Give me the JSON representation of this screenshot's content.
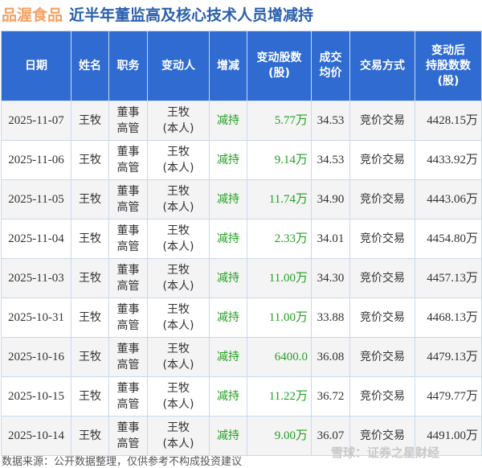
{
  "header": {
    "brand": "品渥食品",
    "title": "近半年董监高及核心技术人员增减持"
  },
  "columns": [
    "日期",
    "姓名",
    "职务",
    "变动人",
    "增减",
    "变动股数（股）",
    "成交均价",
    "交易方式",
    "变动后持股数（股）"
  ],
  "columns_display": [
    [
      "日期"
    ],
    [
      "姓名"
    ],
    [
      "职务"
    ],
    [
      "变动人"
    ],
    [
      "增减"
    ],
    [
      "变动股数",
      "(股)"
    ],
    [
      "成交",
      "均价"
    ],
    [
      "交易方式"
    ],
    [
      "变动后",
      "持股数数",
      "(股)"
    ]
  ],
  "rows": [
    {
      "date": "2025-11-07",
      "name": "王牧",
      "role": [
        "董事",
        "高管"
      ],
      "person": [
        "王牧",
        "(本人)"
      ],
      "dir": "减持",
      "shares": "5.77万",
      "price": "34.53",
      "method": "竞价交易",
      "after": "4428.15万"
    },
    {
      "date": "2025-11-06",
      "name": "王牧",
      "role": [
        "董事",
        "高管"
      ],
      "person": [
        "王牧",
        "(本人)"
      ],
      "dir": "减持",
      "shares": "9.14万",
      "price": "34.53",
      "method": "竞价交易",
      "after": "4433.92万"
    },
    {
      "date": "2025-11-05",
      "name": "王牧",
      "role": [
        "董事",
        "高管"
      ],
      "person": [
        "王牧",
        "(本人)"
      ],
      "dir": "减持",
      "shares": "11.74万",
      "price": "34.90",
      "method": "竞价交易",
      "after": "4443.06万"
    },
    {
      "date": "2025-11-04",
      "name": "王牧",
      "role": [
        "董事",
        "高管"
      ],
      "person": [
        "王牧",
        "(本人)"
      ],
      "dir": "减持",
      "shares": "2.33万",
      "price": "34.01",
      "method": "竞价交易",
      "after": "4454.80万"
    },
    {
      "date": "2025-11-03",
      "name": "王牧",
      "role": [
        "董事",
        "高管"
      ],
      "person": [
        "王牧",
        "(本人)"
      ],
      "dir": "减持",
      "shares": "11.00万",
      "price": "34.30",
      "method": "竞价交易",
      "after": "4457.13万"
    },
    {
      "date": "2025-10-31",
      "name": "王牧",
      "role": [
        "董事",
        "高管"
      ],
      "person": [
        "王牧",
        "(本人)"
      ],
      "dir": "减持",
      "shares": "11.00万",
      "price": "33.88",
      "method": "竞价交易",
      "after": "4468.13万"
    },
    {
      "date": "2025-10-16",
      "name": "王牧",
      "role": [
        "董事",
        "高管"
      ],
      "person": [
        "王牧",
        "(本人)"
      ],
      "dir": "减持",
      "shares": "6400.0",
      "price": "36.08",
      "method": "竞价交易",
      "after": "4479.13万"
    },
    {
      "date": "2025-10-15",
      "name": "王牧",
      "role": [
        "董事",
        "高管"
      ],
      "person": [
        "王牧",
        "(本人)"
      ],
      "dir": "减持",
      "shares": "11.22万",
      "price": "36.72",
      "method": "竞价交易",
      "after": "4479.77万"
    },
    {
      "date": "2025-10-14",
      "name": "王牧",
      "role": [
        "董事",
        "高管"
      ],
      "person": [
        "王牧",
        "(本人)"
      ],
      "dir": "减持",
      "shares": "9.00万",
      "price": "36.07",
      "method": "竞价交易",
      "after": "4491.00万"
    }
  ],
  "footer": {
    "source": "数据来源：公开数据整理，仅供参考不构成投资建议",
    "watermark": "雪球：证券之星财经"
  },
  "colors": {
    "header_bg": "#2f6bd1",
    "brand": "#f5a061",
    "title": "#2b5fae",
    "decrease": "#22a022"
  }
}
